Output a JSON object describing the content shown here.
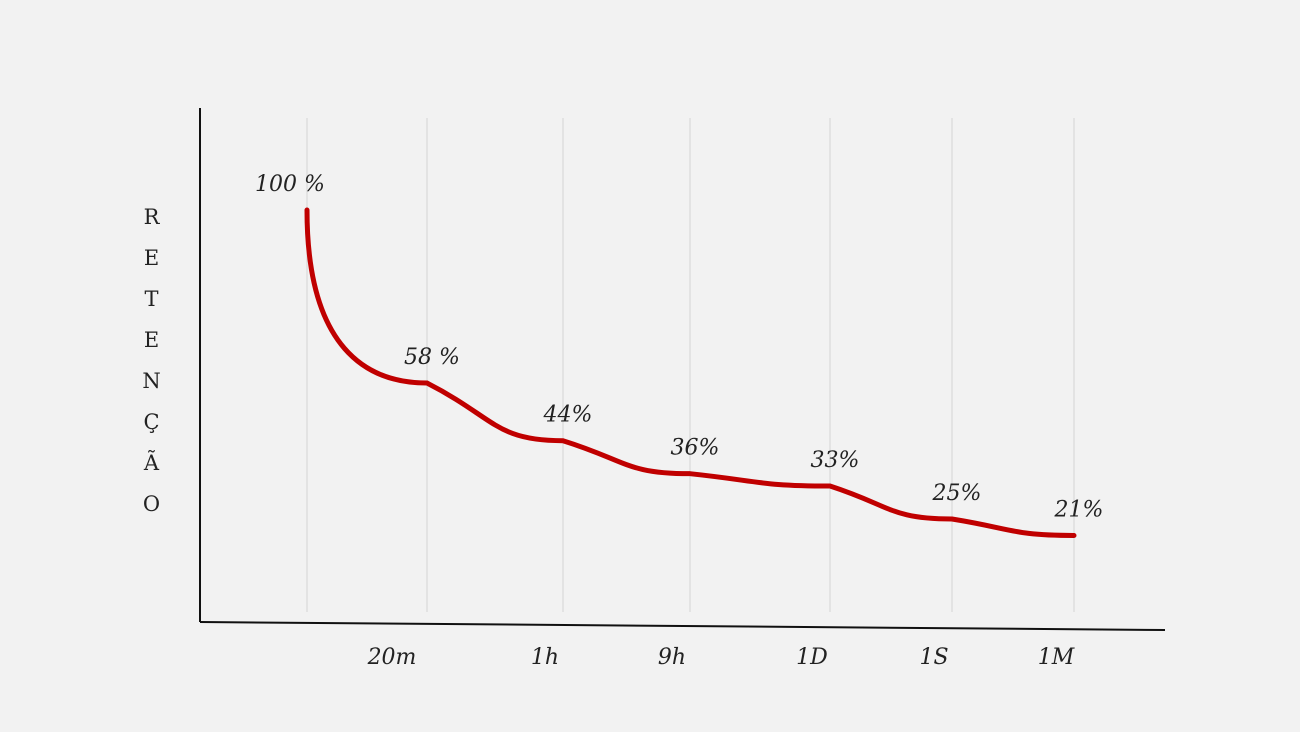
{
  "chart_data": {
    "type": "line",
    "y_label": "RETENÇÃO",
    "categories": [
      null,
      "20m",
      "1h",
      "9h",
      "1D",
      "1S",
      "1M"
    ],
    "series": [
      {
        "name": null,
        "color": "#c00000",
        "values": [
          100,
          58,
          44,
          36,
          33,
          25,
          21
        ],
        "value_labels": [
          "100 %",
          "58 %",
          "44%",
          "36%",
          "33%",
          "25%",
          "21%"
        ]
      }
    ],
    "ylim": [
      0,
      100
    ],
    "grid": true
  }
}
